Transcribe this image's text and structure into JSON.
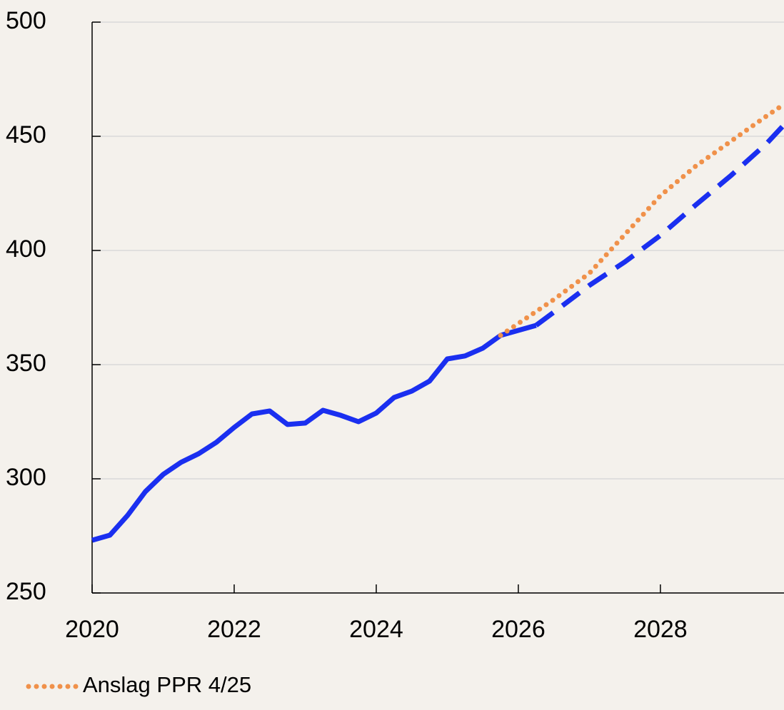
{
  "chart_data": {
    "type": "line",
    "xlim": [
      2020,
      2029.74
    ],
    "xticks": [
      2020,
      2022,
      2024,
      2026,
      2028
    ],
    "ylim": [
      250,
      500
    ],
    "yticks": [
      250,
      300,
      350,
      400,
      450,
      500
    ],
    "grid": true,
    "legend": "bottom-left",
    "series": [
      {
        "color": "#1a2ff0",
        "style": "solid",
        "x": [
          2020,
          2020.25,
          2020.5,
          2020.75,
          2021,
          2021.25,
          2021.5,
          2021.75,
          2022,
          2022.25,
          2022.5,
          2022.75,
          2023,
          2023.25,
          2023.5,
          2023.75,
          2024,
          2024.25,
          2024.5,
          2024.75,
          2025,
          2025.25,
          2025.5,
          2025.75,
          2026,
          2026.25
        ],
        "values": [
          273.1,
          275.3,
          284,
          294.4,
          301.9,
          307.2,
          311,
          316,
          322.5,
          328.4,
          329.7,
          323.8,
          324.4,
          330,
          327.8,
          325,
          328.8,
          335.6,
          338.4,
          342.8,
          352.5,
          353.8,
          357.2,
          362.8,
          365,
          367.2
        ]
      },
      {
        "color": "#1a2ff0",
        "style": "dashed",
        "x": [
          2026.25,
          2026.5,
          2027,
          2027.5,
          2028,
          2028.5,
          2029,
          2029.5,
          2029.74
        ],
        "values": [
          367.2,
          373,
          384.7,
          395,
          406.6,
          420,
          433,
          447,
          455
        ]
      },
      {
        "name": "Anslag PPR 4/25",
        "color": "#f0914a",
        "style": "dotted",
        "x": [
          2025.75,
          2026,
          2026.5,
          2027,
          2027.5,
          2028,
          2028.5,
          2029,
          2029.5,
          2029.74
        ],
        "values": [
          362.8,
          368,
          378.5,
          390,
          407,
          424,
          437,
          448,
          459,
          464
        ]
      }
    ]
  }
}
